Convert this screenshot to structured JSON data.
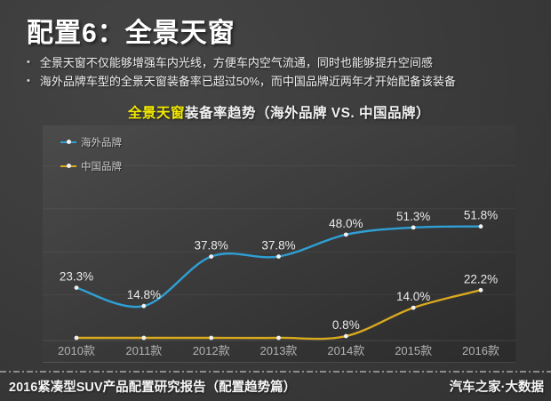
{
  "page": {
    "title": "配置6：全景天窗",
    "bullet_glyph": "•",
    "bullets": [
      "全景天窗不仅能够增强车内光线，方便车内空气流通，同时也能够提升空间感",
      "海外品牌车型的全景天窗装备率已超过50%，而中国品牌近两年才开始配备该装备"
    ]
  },
  "chart": {
    "title_highlight": "全景天窗",
    "title_rest": "装备率趋势（海外品牌 VS. 中国品牌）"
  },
  "chart_data": {
    "type": "line",
    "title": "全景天窗装备率趋势（海外品牌 VS. 中国品牌）",
    "categories": [
      "2010款",
      "2011款",
      "2012款",
      "2013款",
      "2014款",
      "2015款",
      "2016款"
    ],
    "series": [
      {
        "name": "海外品牌",
        "color": "#2f9fd4",
        "values": [
          23.3,
          14.8,
          37.8,
          37.8,
          48.0,
          51.3,
          51.8
        ],
        "labels": [
          "23.3%",
          "14.8%",
          "37.8%",
          "37.8%",
          "48.0%",
          "51.3%",
          "51.8%"
        ]
      },
      {
        "name": "中国品牌",
        "color": "#d9a91e",
        "values": [
          0.0,
          0.0,
          0.0,
          0.0,
          0.8,
          14.0,
          22.2
        ],
        "labels": [
          "",
          "",
          "",
          "",
          "0.8%",
          "14.0%",
          "22.2%"
        ]
      }
    ],
    "ylim": [
      0,
      100
    ],
    "grid": "faint-horizontal-every-20pct",
    "legend_position": "top-left",
    "point_color": "#f2f2f2",
    "smooth": true
  },
  "footer": {
    "left": "2016紧凑型SUV产品配置研究报告（配置趋势篇）",
    "right": "汽车之家·大数据"
  },
  "colors": {
    "background": "#3a3a3a",
    "panel_top": "#4b4b4b",
    "panel_bottom": "#2b2b2b",
    "highlight_yellow": "#f3ea00",
    "axis_label": "#b2b2b2",
    "data_label": "#eaeaea",
    "legend_label": "#c9c9c9",
    "separator": "#a9a9a9"
  }
}
